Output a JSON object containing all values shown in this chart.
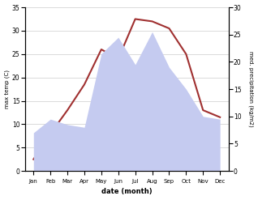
{
  "months": [
    "Jan",
    "Feb",
    "Mar",
    "Apr",
    "May",
    "Jun",
    "Jul",
    "Aug",
    "Sep",
    "Oct",
    "Nov",
    "Dec"
  ],
  "temp": [
    2.5,
    8.0,
    13.0,
    18.5,
    26.0,
    24.0,
    32.5,
    32.0,
    30.5,
    25.0,
    13.0,
    11.5
  ],
  "precip": [
    7.0,
    9.5,
    8.5,
    8.0,
    21.5,
    24.5,
    19.5,
    25.5,
    19.0,
    15.0,
    10.0,
    9.5
  ],
  "temp_color": "#a03030",
  "precip_fill_color": "#c5cbf0",
  "ylim_temp": [
    0,
    35
  ],
  "ylim_precip": [
    0,
    30
  ],
  "ylabel_left": "max temp (C)",
  "ylabel_right": "med. precipitation (kg/m2)",
  "xlabel": "date (month)",
  "bg_color": "#ffffff",
  "yticks_left": [
    0,
    5,
    10,
    15,
    20,
    25,
    30,
    35
  ],
  "yticks_right": [
    0,
    5,
    10,
    15,
    20,
    25,
    30
  ]
}
